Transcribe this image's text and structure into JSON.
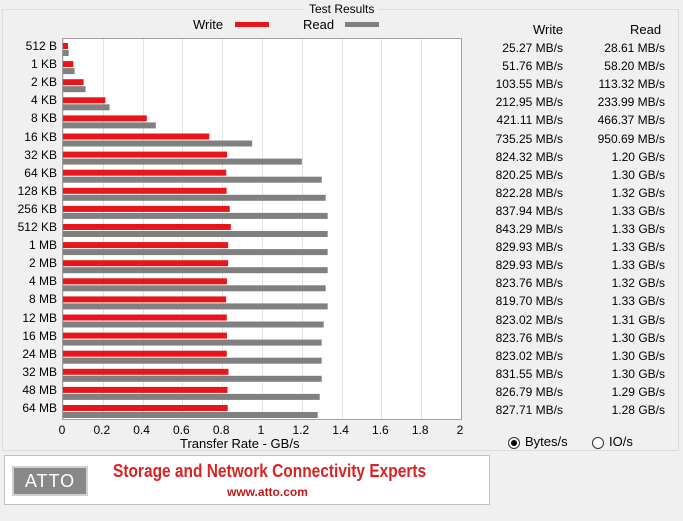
{
  "title": "Test Results",
  "legend": {
    "write_label": "Write",
    "read_label": "Read",
    "write_color": "#e8161b",
    "read_color": "#808080"
  },
  "columns": {
    "write": "Write",
    "read": "Read"
  },
  "chart_data": {
    "type": "bar",
    "orientation": "horizontal",
    "categories": [
      "512 B",
      "1 KB",
      "2 KB",
      "4 KB",
      "8 KB",
      "16 KB",
      "32 KB",
      "64 KB",
      "128 KB",
      "256 KB",
      "512 KB",
      "1 MB",
      "2 MB",
      "4 MB",
      "8 MB",
      "12 MB",
      "16 MB",
      "24 MB",
      "32 MB",
      "48 MB",
      "64 MB"
    ],
    "series": [
      {
        "name": "Write",
        "color": "#e8161b",
        "values": [
          0.02527,
          0.05176,
          0.10355,
          0.21295,
          0.42111,
          0.73525,
          0.82432,
          0.82025,
          0.82228,
          0.83794,
          0.84329,
          0.82993,
          0.82993,
          0.82376,
          0.8197,
          0.82302,
          0.82376,
          0.82302,
          0.83155,
          0.82679,
          0.82771
        ]
      },
      {
        "name": "Read",
        "color": "#808080",
        "values": [
          0.02861,
          0.0582,
          0.11332,
          0.23399,
          0.46637,
          0.95069,
          1.2,
          1.3,
          1.32,
          1.33,
          1.33,
          1.33,
          1.33,
          1.32,
          1.33,
          1.31,
          1.3,
          1.3,
          1.3,
          1.29,
          1.28
        ]
      }
    ],
    "xlabel": "Transfer Rate - GB/s",
    "xlim": [
      0,
      2
    ],
    "xticks": [
      "0",
      "0.2",
      "0.4",
      "0.6",
      "0.8",
      "1",
      "1.2",
      "1.4",
      "1.6",
      "1.8",
      "2"
    ],
    "grid": true
  },
  "rows": [
    {
      "size": "512 B",
      "write": "25.27 MB/s",
      "read": "28.61 MB/s"
    },
    {
      "size": "1 KB",
      "write": "51.76 MB/s",
      "read": "58.20 MB/s"
    },
    {
      "size": "2 KB",
      "write": "103.55 MB/s",
      "read": "113.32 MB/s"
    },
    {
      "size": "4 KB",
      "write": "212.95 MB/s",
      "read": "233.99 MB/s"
    },
    {
      "size": "8 KB",
      "write": "421.11 MB/s",
      "read": "466.37 MB/s"
    },
    {
      "size": "16 KB",
      "write": "735.25 MB/s",
      "read": "950.69 MB/s"
    },
    {
      "size": "32 KB",
      "write": "824.32 MB/s",
      "read": "1.20 GB/s"
    },
    {
      "size": "64 KB",
      "write": "820.25 MB/s",
      "read": "1.30 GB/s"
    },
    {
      "size": "128 KB",
      "write": "822.28 MB/s",
      "read": "1.32 GB/s"
    },
    {
      "size": "256 KB",
      "write": "837.94 MB/s",
      "read": "1.33 GB/s"
    },
    {
      "size": "512 KB",
      "write": "843.29 MB/s",
      "read": "1.33 GB/s"
    },
    {
      "size": "1 MB",
      "write": "829.93 MB/s",
      "read": "1.33 GB/s"
    },
    {
      "size": "2 MB",
      "write": "829.93 MB/s",
      "read": "1.33 GB/s"
    },
    {
      "size": "4 MB",
      "write": "823.76 MB/s",
      "read": "1.32 GB/s"
    },
    {
      "size": "8 MB",
      "write": "819.70 MB/s",
      "read": "1.33 GB/s"
    },
    {
      "size": "12 MB",
      "write": "823.02 MB/s",
      "read": "1.31 GB/s"
    },
    {
      "size": "16 MB",
      "write": "823.76 MB/s",
      "read": "1.30 GB/s"
    },
    {
      "size": "24 MB",
      "write": "823.02 MB/s",
      "read": "1.30 GB/s"
    },
    {
      "size": "32 MB",
      "write": "831.55 MB/s",
      "read": "1.30 GB/s"
    },
    {
      "size": "48 MB",
      "write": "826.79 MB/s",
      "read": "1.29 GB/s"
    },
    {
      "size": "64 MB",
      "write": "827.71 MB/s",
      "read": "1.28 GB/s"
    }
  ],
  "units": {
    "bytes_label": "Bytes/s",
    "io_label": "IO/s",
    "selected": "Bytes/s"
  },
  "banner": {
    "logo_text": "ATTO",
    "tagline": "Storage and Network Connectivity Experts",
    "url": "www.atto.com"
  }
}
